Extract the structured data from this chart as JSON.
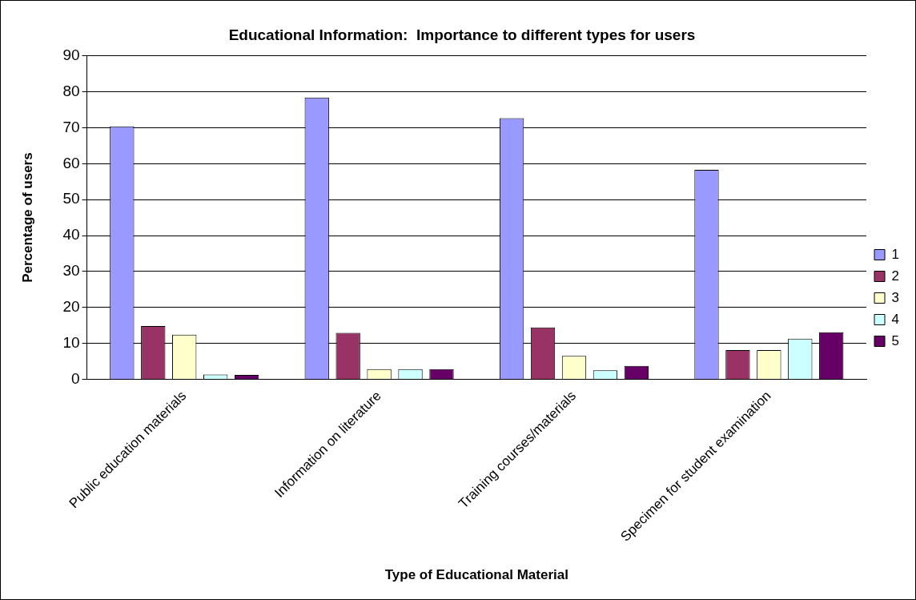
{
  "chart_data": {
    "type": "bar",
    "title": "Educational Information:  Importance to different types for users",
    "xlabel": "Type of Educational Material",
    "ylabel": "Percentage of users",
    "categories": [
      "Public education materials",
      "Information on literature",
      "Training courses/materials",
      "Specimen for student examination"
    ],
    "series": [
      {
        "name": "1",
        "color": "#9999ff",
        "values": [
          70.4,
          78.4,
          72.7,
          58.3
        ]
      },
      {
        "name": "2",
        "color": "#993366",
        "values": [
          14.8,
          12.9,
          14.4,
          8.1
        ]
      },
      {
        "name": "3",
        "color": "#ffffcc",
        "values": [
          12.4,
          2.8,
          6.5,
          8.1
        ]
      },
      {
        "name": "4",
        "color": "#ccffff",
        "values": [
          1.3,
          2.8,
          2.5,
          11.3
        ]
      },
      {
        "name": "5",
        "color": "#660066",
        "values": [
          1.2,
          2.8,
          3.7,
          13.1
        ]
      }
    ],
    "ylim": [
      0,
      90
    ],
    "yticks": [
      0,
      10,
      20,
      30,
      40,
      50,
      60,
      70,
      80,
      90
    ],
    "grid": "y",
    "legend": "right"
  }
}
